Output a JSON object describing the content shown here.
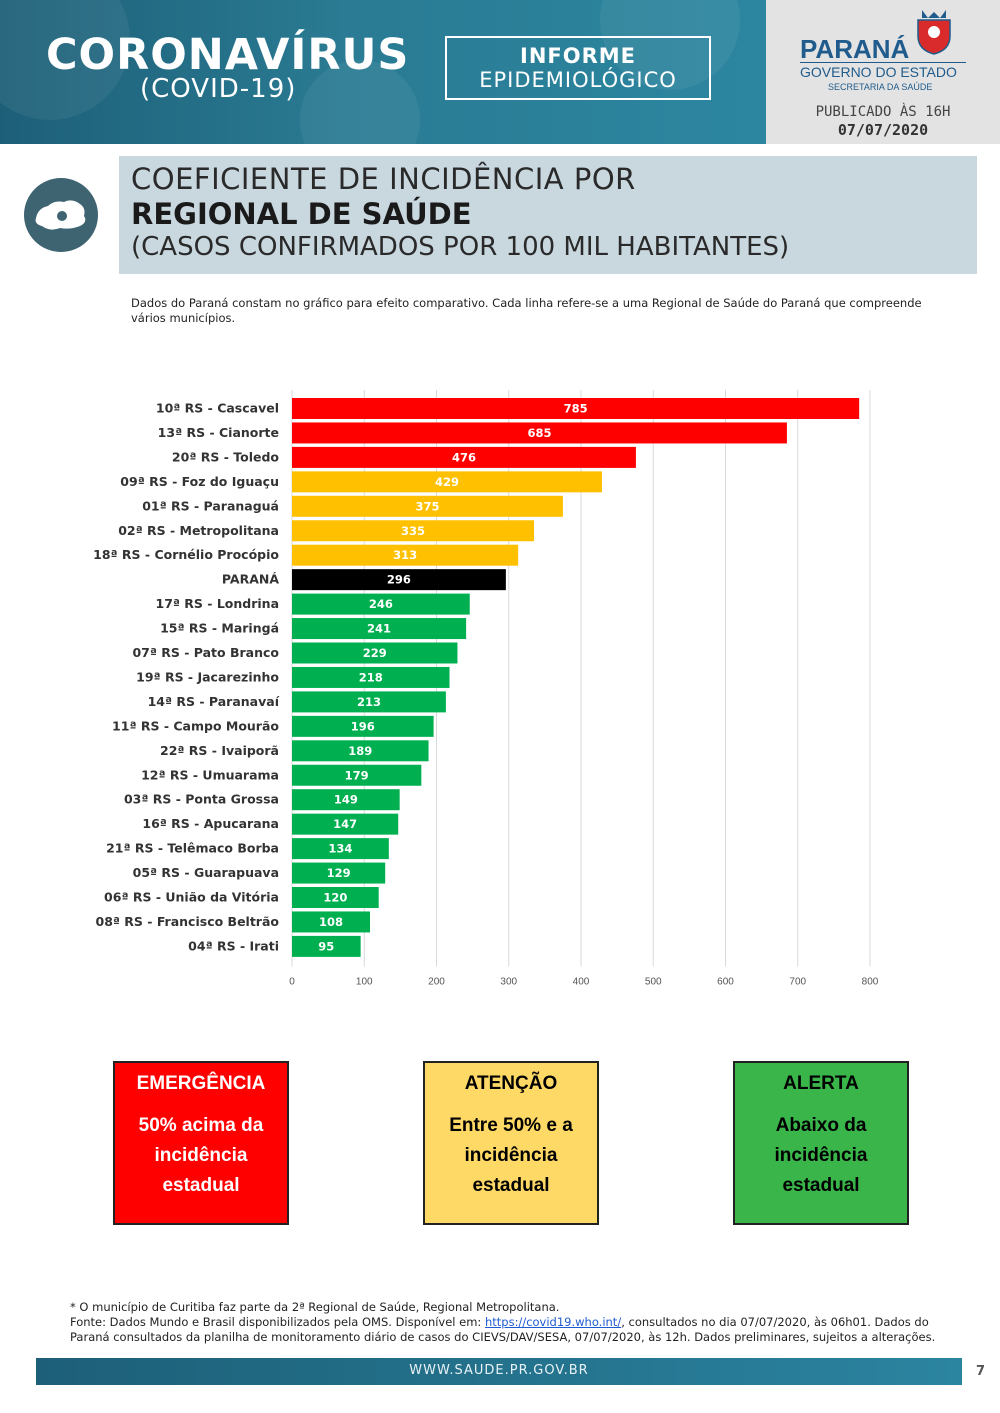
{
  "header": {
    "brand_title": "CORONAVÍRUS",
    "brand_subtitle": "(COVID-19)",
    "informe_line1": "INFORME",
    "informe_line2": "EPIDEMIOLÓGICO",
    "gov_name": "PARANÁ",
    "gov_line": "GOVERNO DO ESTADO",
    "gov_secretaria": "SECRETARIA DA SAÚDE",
    "published": "PUBLICADO ÀS 16H",
    "date": "07/07/2020"
  },
  "section": {
    "title_line1": "COEFICIENTE DE INCIDÊNCIA POR",
    "title_line2": "REGIONAL DE SAÚDE",
    "title_line3": "(CASOS CONFIRMADOS POR 100 MIL HABITANTES)",
    "note": "Dados do Paraná constam no gráfico para efeito comparativo. Cada linha refere-se a uma Regional de Saúde do Paraná que compreende vários municípios."
  },
  "colors": {
    "emergencia": "#ff0000",
    "atencao": "#ffc000",
    "alerta": "#00b050",
    "parana": "#000000",
    "header_blue": "#1d5f78"
  },
  "chart_data": {
    "type": "bar",
    "orientation": "horizontal",
    "categories": [
      "10ª RS - Cascavel",
      "13ª RS - Cianorte",
      "20ª RS - Toledo",
      "09ª RS - Foz do Iguaçu",
      "01ª RS - Paranaguá",
      "02ª RS - Metropolitana",
      "18ª RS - Cornélio Procópio",
      "PARANÁ",
      "17ª RS - Londrina",
      "15ª RS - Maringá",
      "07ª RS - Pato Branco",
      "19ª RS - Jacarezinho",
      "14ª RS - Paranavaí",
      "11ª RS - Campo Mourão",
      "22ª RS - Ivaiporã",
      "12ª RS - Umuarama",
      "03ª RS - Ponta Grossa",
      "16ª RS - Apucarana",
      "21ª RS - Telêmaco Borba",
      "05ª RS - Guarapuava",
      "06ª RS - União da Vitória",
      "08ª RS - Francisco Beltrão",
      "04ª RS - Irati"
    ],
    "values": [
      785,
      685,
      476,
      429,
      375,
      335,
      313,
      296,
      246,
      241,
      229,
      218,
      213,
      196,
      189,
      179,
      149,
      147,
      134,
      129,
      120,
      108,
      95
    ],
    "bar_colors": [
      "#ff0000",
      "#ff0000",
      "#ff0000",
      "#ffc000",
      "#ffc000",
      "#ffc000",
      "#ffc000",
      "#000000",
      "#00b050",
      "#00b050",
      "#00b050",
      "#00b050",
      "#00b050",
      "#00b050",
      "#00b050",
      "#00b050",
      "#00b050",
      "#00b050",
      "#00b050",
      "#00b050",
      "#00b050",
      "#00b050",
      "#00b050"
    ],
    "xlim": [
      0,
      800
    ],
    "xticks": [
      0,
      100,
      200,
      300,
      400,
      500,
      600,
      700,
      800
    ],
    "grid": true,
    "data_labels": true
  },
  "legend": [
    {
      "title": "EMERGÊNCIA",
      "desc": "50% acima da incidência estadual",
      "color": "#ff0000",
      "text_color": "#ffffff"
    },
    {
      "title": "ATENÇÃO",
      "desc": "Entre 50% e a incidência estadual",
      "color": "#ffd966",
      "text_color": "#000000"
    },
    {
      "title": "ALERTA",
      "desc": "Abaixo da incidência estadual",
      "color": "#39b54a",
      "text_color": "#000000"
    }
  ],
  "footer": {
    "note1": "* O município de Curitiba faz parte da 2ª Regional de Saúde, Regional Metropolitana.",
    "source_prefix": "Fonte: Dados Mundo e Brasil disponibilizados pela OMS. Disponível em: ",
    "source_link": "https://covid19.who.int/",
    "source_suffix": ", consultados no dia 07/07/2020, às 06h01. Dados do Paraná consultados da planilha de monitoramento diário de casos do CIEVS/DAV/SESA, 07/07/2020, às 12h. Dados preliminares, sujeitos a alterações.",
    "website": "WWW.SAUDE.PR.GOV.BR",
    "page": "7"
  }
}
